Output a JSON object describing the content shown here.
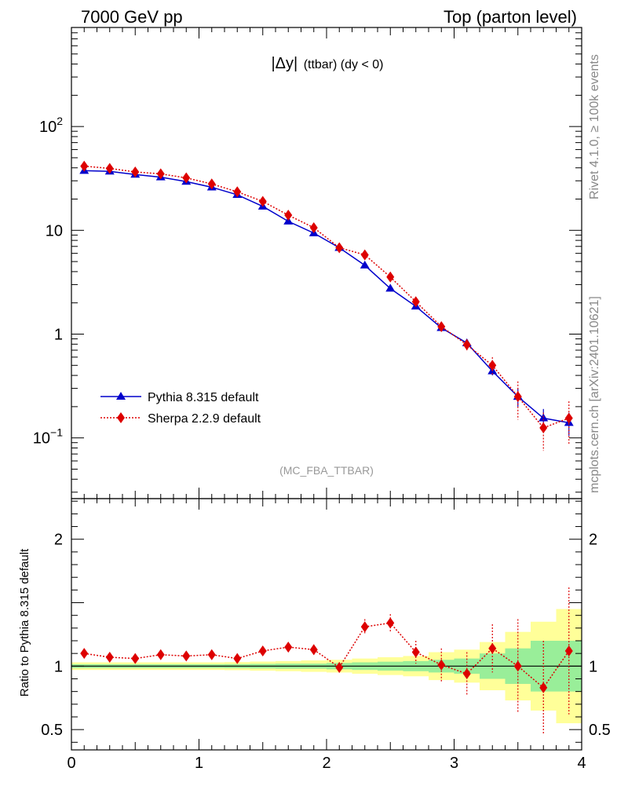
{
  "header": {
    "left": "7000 GeV pp",
    "right": "Top (parton level)"
  },
  "side_labels": {
    "rivet": "Rivet 4.1.0, ≥ 100k events",
    "mcplots": "mcplots.cern.ch [arXiv:2401.10621]"
  },
  "chart_data": [
    {
      "type": "line",
      "panel": "main",
      "title_main": "|Δy|",
      "title_sub": "(ttbar) (dy < 0)",
      "watermark": "(MC_FBA_TTBAR)",
      "yscale": "log",
      "xlim": [
        0,
        4
      ],
      "ylim": [
        0.026,
        900
      ],
      "y_ticks": [
        {
          "value": 0.1,
          "base": "10",
          "exp": "−1"
        },
        {
          "value": 1,
          "base": "1",
          "exp": ""
        },
        {
          "value": 10,
          "base": "10",
          "exp": ""
        },
        {
          "value": 100,
          "base": "10",
          "exp": "2"
        }
      ],
      "x": [
        0.1,
        0.3,
        0.5,
        0.7,
        0.9,
        1.1,
        1.3,
        1.5,
        1.7,
        1.9,
        2.1,
        2.3,
        2.5,
        2.7,
        2.9,
        3.1,
        3.3,
        3.5,
        3.7,
        3.9
      ],
      "series": [
        {
          "name": "Pythia 8.315 default",
          "color": "#0000cc",
          "marker": "triangle",
          "values": [
            37.5,
            37.0,
            34.5,
            32.5,
            29.5,
            26.0,
            22.0,
            17.0,
            12.2,
            9.4,
            6.8,
            4.6,
            2.75,
            1.85,
            1.15,
            0.82,
            0.44,
            0.25,
            0.155,
            0.14
          ],
          "errors": [
            0.4,
            0.4,
            0.4,
            0.3,
            0.3,
            0.3,
            0.3,
            0.2,
            0.2,
            0.15,
            0.12,
            0.1,
            0.07,
            0.05,
            0.04,
            0.04,
            0.04,
            0.05,
            0.035,
            0.035
          ]
        },
        {
          "name": "Sherpa 2.2.9 default",
          "color": "#dd0000",
          "marker": "diamond",
          "values": [
            41.5,
            39.5,
            36.5,
            35.0,
            32.0,
            28.0,
            23.5,
            19.0,
            14.0,
            10.6,
            6.8,
            5.8,
            3.55,
            2.05,
            1.18,
            0.79,
            0.5,
            0.25,
            0.125,
            0.155
          ],
          "errors": [
            1.0,
            1.0,
            0.9,
            0.9,
            0.8,
            0.7,
            0.6,
            0.5,
            0.4,
            0.35,
            0.25,
            0.25,
            0.2,
            0.15,
            0.12,
            0.1,
            0.1,
            0.1,
            0.05,
            0.07
          ]
        }
      ]
    },
    {
      "type": "line",
      "panel": "ratio",
      "ylabel": "Ratio to Pythia 8.315 default",
      "xlim": [
        0,
        4
      ],
      "ylim": [
        0.34,
        2.32
      ],
      "x_ticks": [
        "0",
        "1",
        "2",
        "3",
        "4"
      ],
      "y_ticks": [
        {
          "value": 0.5,
          "label": "0.5"
        },
        {
          "value": 1,
          "label": "1"
        },
        {
          "value": 2,
          "label": "2"
        }
      ],
      "band_inner_color": "#99ee99",
      "band_outer_color": "#ffff99",
      "band_inner": [
        0.015,
        0.015,
        0.015,
        0.015,
        0.015,
        0.015,
        0.016,
        0.018,
        0.02,
        0.02,
        0.025,
        0.03,
        0.035,
        0.04,
        0.05,
        0.06,
        0.1,
        0.14,
        0.2,
        0.2
      ],
      "band_outer": [
        0.03,
        0.03,
        0.03,
        0.03,
        0.03,
        0.03,
        0.032,
        0.036,
        0.04,
        0.045,
        0.05,
        0.06,
        0.07,
        0.08,
        0.11,
        0.13,
        0.19,
        0.27,
        0.35,
        0.45
      ],
      "ratio_values": [
        1.1,
        1.07,
        1.06,
        1.09,
        1.08,
        1.09,
        1.06,
        1.12,
        1.15,
        1.13,
        0.99,
        1.31,
        1.34,
        1.11,
        1.01,
        0.94,
        1.14,
        1.0,
        0.83,
        1.12
      ],
      "ratio_errors": [
        0.025,
        0.025,
        0.025,
        0.025,
        0.025,
        0.025,
        0.025,
        0.03,
        0.035,
        0.04,
        0.04,
        0.06,
        0.07,
        0.09,
        0.13,
        0.17,
        0.19,
        0.37,
        0.37,
        0.5
      ]
    }
  ]
}
